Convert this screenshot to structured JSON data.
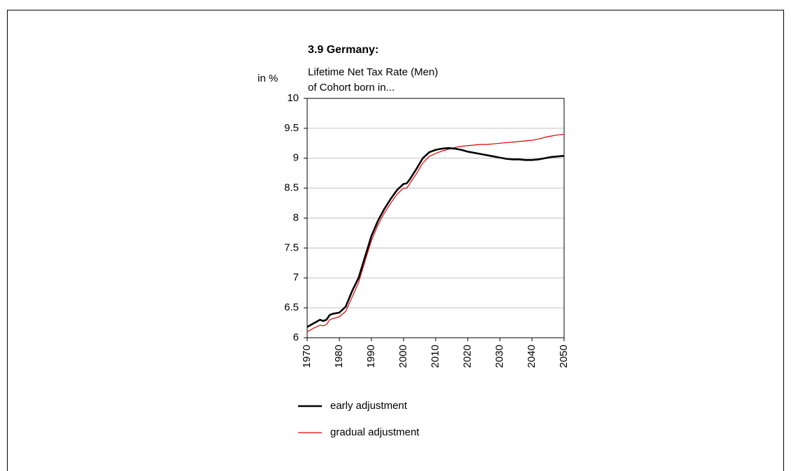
{
  "chart_data": {
    "type": "line",
    "title": "3.9 Germany:",
    "subtitle": [
      "Lifetime Net Tax Rate (Men)",
      "of Cohort born in..."
    ],
    "y_label": "in %",
    "x": [
      1970,
      1972,
      1974,
      1975,
      1976,
      1977,
      1978,
      1980,
      1982,
      1984,
      1986,
      1988,
      1990,
      1992,
      1994,
      1996,
      1998,
      2000,
      2001,
      2002,
      2004,
      2006,
      2008,
      2010,
      2012,
      2014,
      2016,
      2018,
      2020,
      2022,
      2024,
      2026,
      2028,
      2030,
      2032,
      2034,
      2036,
      2038,
      2040,
      2042,
      2044,
      2046,
      2048,
      2050
    ],
    "series": [
      {
        "name": "early adjustment",
        "color": "#000000",
        "values": [
          6.18,
          6.24,
          6.3,
          6.28,
          6.3,
          6.38,
          6.4,
          6.42,
          6.52,
          6.78,
          7.0,
          7.35,
          7.7,
          7.95,
          8.15,
          8.32,
          8.47,
          8.57,
          8.58,
          8.65,
          8.82,
          9.0,
          9.1,
          9.14,
          9.16,
          9.17,
          9.16,
          9.14,
          9.11,
          9.09,
          9.07,
          9.05,
          9.03,
          9.01,
          8.99,
          8.98,
          8.98,
          8.97,
          8.97,
          8.98,
          9.0,
          9.02,
          9.03,
          9.04
        ]
      },
      {
        "name": "gradual adjustment",
        "color": "#e00000",
        "values": [
          6.1,
          6.16,
          6.21,
          6.2,
          6.22,
          6.3,
          6.32,
          6.35,
          6.44,
          6.68,
          6.92,
          7.28,
          7.62,
          7.88,
          8.08,
          8.25,
          8.4,
          8.5,
          8.5,
          8.58,
          8.74,
          8.92,
          9.03,
          9.08,
          9.12,
          9.15,
          9.18,
          9.2,
          9.21,
          9.22,
          9.23,
          9.23,
          9.24,
          9.25,
          9.26,
          9.27,
          9.28,
          9.29,
          9.3,
          9.32,
          9.35,
          9.37,
          9.39,
          9.4
        ]
      }
    ],
    "xlim": [
      1970,
      2050
    ],
    "xticks": [
      1970,
      1980,
      1990,
      2000,
      2010,
      2020,
      2030,
      2040,
      2050
    ],
    "ylim": [
      6,
      10
    ],
    "yticks": [
      6,
      6.5,
      7,
      7.5,
      8,
      8.5,
      9,
      9.5,
      10
    ],
    "grid": true
  }
}
